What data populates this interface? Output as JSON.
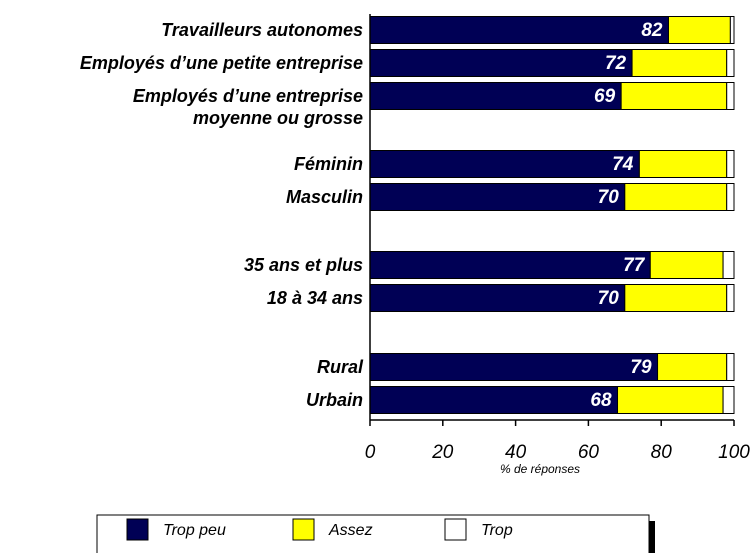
{
  "chart_data": {
    "type": "stacked-barh",
    "categories": [
      "Travailleurs autonomes",
      "Employés d’une petite entreprise",
      "Employés d’une entreprise\nmoyenne ou grosse",
      "Féminin",
      "Masculin",
      "35 ans et plus",
      "18 à 34 ans",
      "Rural",
      "Urbain"
    ],
    "series": [
      {
        "name": "Trop peu",
        "color": "#000055",
        "values": [
          82,
          72,
          69,
          74,
          70,
          77,
          70,
          79,
          68
        ]
      },
      {
        "name": "Assez",
        "color": "#ffff00",
        "values": [
          17,
          26,
          29,
          24,
          28,
          20,
          28,
          19,
          29
        ]
      },
      {
        "name": "Trop",
        "color": "#ffffff",
        "values": [
          1,
          2,
          2,
          2,
          2,
          3,
          2,
          2,
          3
        ]
      }
    ],
    "xlabel": "% de réponses",
    "xlim": [
      0,
      100
    ],
    "xticks": [
      0,
      20,
      40,
      60,
      80,
      100
    ],
    "data_labels_series": 0,
    "legend": "bottom"
  }
}
